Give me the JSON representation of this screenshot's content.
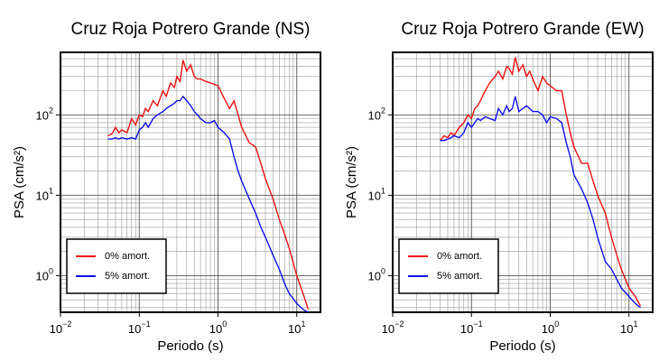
{
  "chart_data": [
    {
      "type": "line",
      "title": "Cruz Roja Potrero Grande (NS)",
      "x_label": "Periodo (s)",
      "y_label": "PSA (cm/s²)",
      "xscale": "log",
      "yscale": "log",
      "grid": true,
      "minor_grid": true,
      "legend": "lower left",
      "xlim": [
        0.01,
        20
      ],
      "ylim": [
        0.35,
        600
      ],
      "xticks": [
        {
          "value": 0.01,
          "label": "10",
          "sup": "−2"
        },
        {
          "value": 0.1,
          "label": "10",
          "sup": "−1"
        },
        {
          "value": 1,
          "label": "10",
          "sup": "0"
        },
        {
          "value": 10,
          "label": "10",
          "sup": "1"
        }
      ],
      "yticks": [
        {
          "value": 1,
          "label": "10",
          "sup": "0"
        },
        {
          "value": 10,
          "label": "10",
          "sup": "1"
        },
        {
          "value": 100,
          "label": "10",
          "sup": "2"
        }
      ],
      "x": [
        0.04,
        0.045,
        0.05,
        0.055,
        0.06,
        0.07,
        0.08,
        0.09,
        0.1,
        0.11,
        0.12,
        0.13,
        0.15,
        0.17,
        0.2,
        0.22,
        0.25,
        0.28,
        0.3,
        0.33,
        0.36,
        0.4,
        0.45,
        0.5,
        0.55,
        0.6,
        0.7,
        0.8,
        0.9,
        1.0,
        1.2,
        1.4,
        1.6,
        1.8,
        2.0,
        2.5,
        3.0,
        3.5,
        4.0,
        5.0,
        6.0,
        7.0,
        8.0,
        10.0,
        12.0,
        14.0
      ],
      "series": [
        {
          "name": "0% amort.",
          "color": "#ee1111",
          "values": [
            55,
            58,
            70,
            60,
            65,
            60,
            90,
            75,
            100,
            95,
            120,
            110,
            150,
            130,
            200,
            170,
            250,
            220,
            300,
            260,
            480,
            350,
            420,
            300,
            280,
            280,
            260,
            250,
            240,
            230,
            160,
            120,
            150,
            100,
            70,
            45,
            40,
            25,
            16,
            9,
            5,
            3.3,
            2.2,
            1,
            0.6,
            0.38
          ]
        },
        {
          "name": "5% amort.",
          "color": "#1111ee",
          "values": [
            50,
            50,
            52,
            50,
            52,
            50,
            52,
            50,
            65,
            70,
            80,
            70,
            90,
            100,
            110,
            120,
            130,
            140,
            150,
            150,
            170,
            150,
            130,
            110,
            100,
            90,
            80,
            80,
            85,
            70,
            60,
            50,
            30,
            20,
            15,
            9,
            6,
            4,
            3,
            1.8,
            1.2,
            0.8,
            0.6,
            0.45,
            0.38,
            0.35
          ]
        }
      ]
    },
    {
      "type": "line",
      "title": "Cruz Roja Potrero Grande (EW)",
      "x_label": "Periodo (s)",
      "y_label": "PSA (cm/s²)",
      "xscale": "log",
      "yscale": "log",
      "grid": true,
      "minor_grid": true,
      "legend": "lower left",
      "xlim": [
        0.01,
        20
      ],
      "ylim": [
        0.35,
        600
      ],
      "xticks": [
        {
          "value": 0.01,
          "label": "10",
          "sup": "−2"
        },
        {
          "value": 0.1,
          "label": "10",
          "sup": "−1"
        },
        {
          "value": 1,
          "label": "10",
          "sup": "0"
        },
        {
          "value": 10,
          "label": "10",
          "sup": "1"
        }
      ],
      "yticks": [
        {
          "value": 1,
          "label": "10",
          "sup": "0"
        },
        {
          "value": 10,
          "label": "10",
          "sup": "1"
        },
        {
          "value": 100,
          "label": "10",
          "sup": "2"
        }
      ],
      "x": [
        0.04,
        0.045,
        0.05,
        0.055,
        0.06,
        0.07,
        0.08,
        0.09,
        0.1,
        0.11,
        0.12,
        0.13,
        0.15,
        0.17,
        0.2,
        0.22,
        0.25,
        0.28,
        0.3,
        0.33,
        0.36,
        0.4,
        0.45,
        0.5,
        0.55,
        0.6,
        0.7,
        0.8,
        0.9,
        1.0,
        1.2,
        1.4,
        1.6,
        1.8,
        2.0,
        2.5,
        3.0,
        3.5,
        4.0,
        5.0,
        6.0,
        7.0,
        8.0,
        10.0,
        12.0,
        14.0
      ],
      "series": [
        {
          "name": "0% amort.",
          "color": "#ee1111",
          "values": [
            48,
            55,
            52,
            60,
            55,
            70,
            80,
            100,
            90,
            120,
            130,
            150,
            200,
            250,
            300,
            350,
            280,
            400,
            380,
            320,
            520,
            350,
            420,
            300,
            350,
            280,
            200,
            300,
            250,
            230,
            200,
            200,
            100,
            60,
            40,
            25,
            25,
            15,
            10,
            6,
            3,
            1.8,
            1.2,
            0.7,
            0.55,
            0.42
          ]
        },
        {
          "name": "5% amort.",
          "color": "#1111ee",
          "values": [
            48,
            48,
            50,
            52,
            55,
            52,
            60,
            80,
            70,
            80,
            90,
            85,
            95,
            90,
            85,
            120,
            100,
            130,
            110,
            120,
            170,
            110,
            120,
            130,
            120,
            110,
            110,
            100,
            80,
            95,
            90,
            80,
            45,
            30,
            18,
            12,
            8,
            5,
            3,
            1.5,
            1.2,
            0.9,
            0.7,
            0.55,
            0.45,
            0.4
          ]
        }
      ]
    }
  ]
}
